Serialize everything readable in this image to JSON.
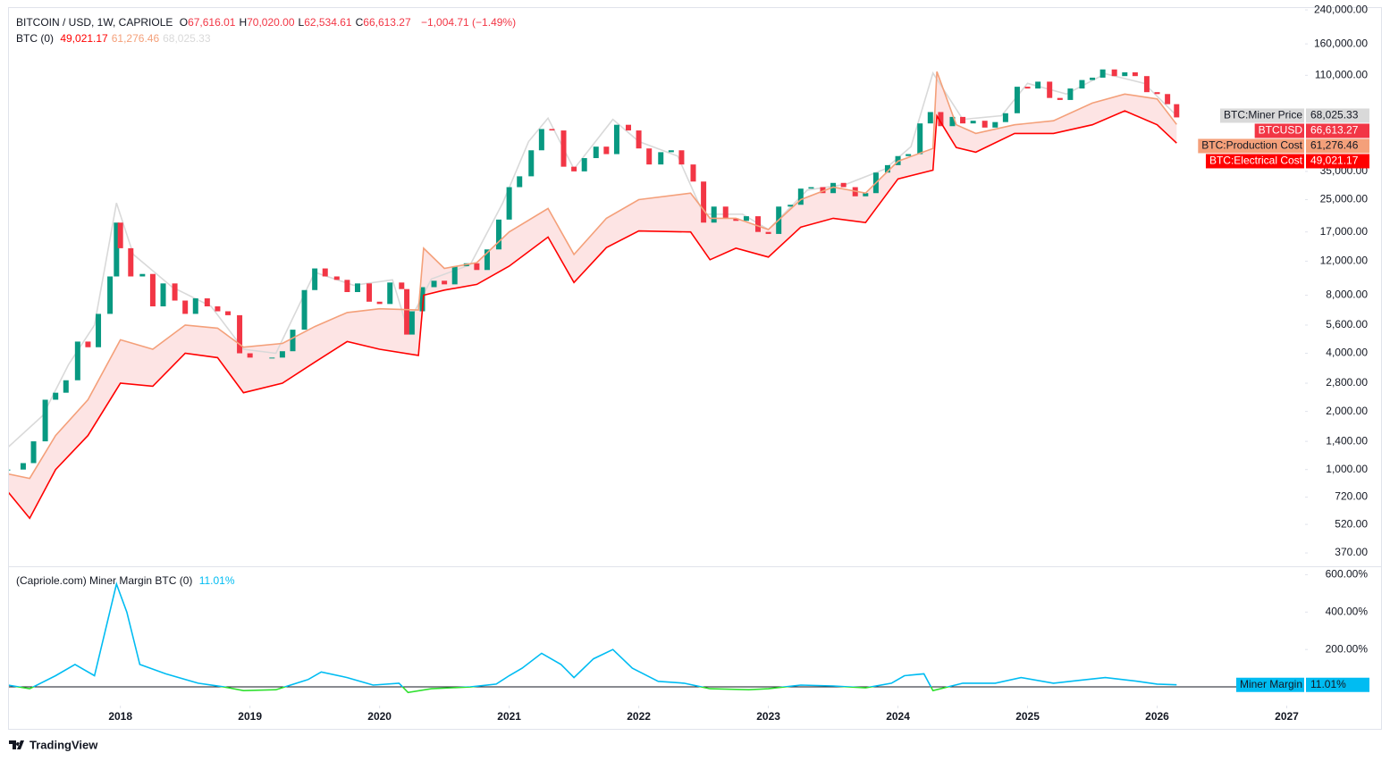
{
  "chart_data": [
    {
      "type": "line",
      "log_scale": true,
      "grid": false,
      "header": {
        "symbol": "BITCOIN / USD, 1W, CAPRIOLE",
        "ohlc": [
          {
            "key": "O",
            "label": "67,616.01"
          },
          {
            "key": "H",
            "label": "70,020.00"
          },
          {
            "key": "L",
            "label": "62,534.61"
          },
          {
            "key": "C",
            "label": "66,613.27"
          }
        ],
        "change": "−1,004.71 (−1.49%)"
      },
      "legend_title": "BTC (0)",
      "xlim": [
        2017.14,
        2027.1
      ],
      "ylim": [
        319,
        248000
      ],
      "yticks": [
        {
          "value": 370,
          "label": "370.00"
        },
        {
          "value": 520,
          "label": "520.00"
        },
        {
          "value": 720,
          "label": "720.00"
        },
        {
          "value": 1000,
          "label": "1,000.00"
        },
        {
          "value": 1400,
          "label": "1,400.00"
        },
        {
          "value": 2000,
          "label": "2,000.00"
        },
        {
          "value": 2800,
          "label": "2,800.00"
        },
        {
          "value": 4000,
          "label": "4,000.00"
        },
        {
          "value": 5600,
          "label": "5,600.00"
        },
        {
          "value": 8000,
          "label": "8,000.00"
        },
        {
          "value": 12000,
          "label": "12,000.00"
        },
        {
          "value": 17000,
          "label": "17,000.00"
        },
        {
          "value": 25000,
          "label": "25,000.00"
        },
        {
          "value": 35000,
          "label": "35,000.00"
        },
        {
          "value": 110000,
          "label": "110,000.00"
        },
        {
          "value": 160000,
          "label": "160,000.00"
        },
        {
          "value": 240000,
          "label": "240,000.00"
        }
      ],
      "series": [
        {
          "name": "BTC:Miner Price",
          "color": "#d9d9d9",
          "x": [
            2017.13,
            2017.4,
            2017.6,
            2017.8,
            2017.97,
            2018.1,
            2018.4,
            2018.7,
            2018.95,
            2019.2,
            2019.5,
            2019.8,
            2020.1,
            2020.21,
            2020.4,
            2020.7,
            2020.95,
            2021.15,
            2021.3,
            2021.5,
            2021.8,
            2022.0,
            2022.3,
            2022.5,
            2022.8,
            2023.0,
            2023.3,
            2023.6,
            2023.9,
            2024.1,
            2024.27,
            2024.5,
            2024.8,
            2025.0,
            2025.3,
            2025.6,
            2025.9,
            2026.15
          ],
          "values": [
            1300,
            1900,
            3500,
            5600,
            24000,
            13000,
            8800,
            7000,
            4200,
            4000,
            10500,
            9000,
            9600,
            5500,
            9700,
            11500,
            24000,
            50000,
            66000,
            36000,
            65000,
            50000,
            42000,
            21000,
            21000,
            17500,
            28000,
            30000,
            36000,
            47000,
            113000,
            65000,
            68000,
            100000,
            88000,
            112000,
            100000,
            68025.33
          ],
          "last": {
            "value": 68025.33,
            "label": "68,025.33"
          }
        },
        {
          "name": "BTCUSD",
          "style": "candles",
          "color": "#f23645",
          "up_color": "#089981",
          "x": [
            2017.13,
            2017.25,
            2017.33,
            2017.42,
            2017.5,
            2017.58,
            2017.67,
            2017.75,
            2017.83,
            2017.92,
            2017.97,
            2018.0,
            2018.08,
            2018.17,
            2018.25,
            2018.33,
            2018.42,
            2018.5,
            2018.58,
            2018.67,
            2018.75,
            2018.83,
            2018.92,
            2019.0,
            2019.17,
            2019.25,
            2019.33,
            2019.42,
            2019.5,
            2019.58,
            2019.67,
            2019.75,
            2019.83,
            2019.92,
            2020.0,
            2020.08,
            2020.17,
            2020.21,
            2020.25,
            2020.33,
            2020.42,
            2020.5,
            2020.58,
            2020.67,
            2020.75,
            2020.83,
            2020.92,
            2021.0,
            2021.08,
            2021.17,
            2021.25,
            2021.33,
            2021.42,
            2021.5,
            2021.58,
            2021.67,
            2021.75,
            2021.83,
            2021.92,
            2022.0,
            2022.08,
            2022.17,
            2022.25,
            2022.33,
            2022.42,
            2022.5,
            2022.58,
            2022.67,
            2022.75,
            2022.83,
            2022.92,
            2023.0,
            2023.08,
            2023.17,
            2023.25,
            2023.33,
            2023.42,
            2023.5,
            2023.58,
            2023.67,
            2023.75,
            2023.83,
            2023.92,
            2024.0,
            2024.08,
            2024.17,
            2024.25,
            2024.33,
            2024.42,
            2024.5,
            2024.58,
            2024.67,
            2024.75,
            2024.83,
            2024.92,
            2025.0,
            2025.08,
            2025.17,
            2025.25,
            2025.33,
            2025.42,
            2025.5,
            2025.58,
            2025.67,
            2025.75,
            2025.83,
            2025.92,
            2026.0,
            2026.08,
            2026.15
          ],
          "values": [
            1000,
            1080,
            1400,
            2300,
            2500,
            2900,
            4600,
            4300,
            6400,
            10000,
            19000,
            14000,
            10000,
            10300,
            7000,
            9200,
            7500,
            6400,
            7700,
            7000,
            6600,
            6300,
            4000,
            3800,
            3800,
            4100,
            5300,
            8500,
            11000,
            10000,
            9600,
            8300,
            9200,
            7400,
            7200,
            9300,
            8600,
            5000,
            6600,
            8800,
            9500,
            9100,
            11300,
            11700,
            10800,
            13800,
            19700,
            29000,
            33000,
            45000,
            58000,
            57000,
            37000,
            35000,
            41000,
            47000,
            43000,
            61000,
            57000,
            46000,
            38000,
            44000,
            45000,
            38000,
            31000,
            19000,
            23000,
            20000,
            19400,
            20500,
            17000,
            16600,
            23000,
            23500,
            28500,
            29000,
            27000,
            30500,
            29000,
            26000,
            27000,
            34500,
            37700,
            42000,
            43000,
            62000,
            71000,
            60000,
            67000,
            62000,
            64000,
            59000,
            63000,
            70000,
            96000,
            94000,
            102000,
            84000,
            82000,
            94000,
            104000,
            107000,
            118000,
            109000,
            114000,
            109000,
            90000,
            88000,
            78000,
            66613.27
          ],
          "last": {
            "value": 66613.27,
            "label": "66,613.27"
          }
        },
        {
          "name": "BTC:Production Cost",
          "color": "#f4a07a",
          "fill": "#fde4e4",
          "x": [
            2017.13,
            2017.3,
            2017.5,
            2017.75,
            2018.0,
            2018.25,
            2018.5,
            2018.75,
            2018.95,
            2019.25,
            2019.5,
            2019.75,
            2020.0,
            2020.3,
            2020.34,
            2020.5,
            2020.75,
            2021.0,
            2021.3,
            2021.5,
            2021.75,
            2022.0,
            2022.4,
            2022.55,
            2022.75,
            2023.0,
            2023.25,
            2023.5,
            2023.75,
            2024.0,
            2024.27,
            2024.3,
            2024.45,
            2024.6,
            2024.9,
            2025.2,
            2025.5,
            2025.75,
            2026.0,
            2026.15
          ],
          "values": [
            950,
            900,
            1500,
            2300,
            4700,
            4200,
            5600,
            5400,
            4300,
            4500,
            5500,
            6500,
            6800,
            6700,
            14000,
            11000,
            11800,
            17000,
            22500,
            13000,
            20000,
            25000,
            27000,
            20000,
            20000,
            17500,
            25000,
            29000,
            27000,
            39500,
            46000,
            115000,
            61000,
            55000,
            61000,
            64000,
            79000,
            88000,
            83000,
            61276.46
          ],
          "last": {
            "value": 61276.46,
            "label": "61,276.46"
          }
        },
        {
          "name": "BTC:Electrical Cost",
          "color": "#ff0000",
          "x": [
            2017.13,
            2017.3,
            2017.5,
            2017.75,
            2018.0,
            2018.25,
            2018.5,
            2018.75,
            2018.95,
            2019.25,
            2019.5,
            2019.75,
            2020.0,
            2020.3,
            2020.34,
            2020.5,
            2020.75,
            2021.0,
            2021.3,
            2021.5,
            2021.75,
            2022.0,
            2022.4,
            2022.55,
            2022.75,
            2023.0,
            2023.25,
            2023.5,
            2023.75,
            2024.0,
            2024.27,
            2024.3,
            2024.45,
            2024.6,
            2024.9,
            2025.2,
            2025.5,
            2025.75,
            2026.0,
            2026.15
          ],
          "values": [
            770,
            560,
            1000,
            1500,
            2800,
            2700,
            4000,
            3800,
            2500,
            2800,
            3600,
            4600,
            4200,
            3900,
            8000,
            8500,
            9100,
            11300,
            16000,
            9300,
            14100,
            17200,
            17000,
            12200,
            14000,
            12600,
            18000,
            20000,
            19000,
            32000,
            35500,
            67700,
            46500,
            44000,
            55000,
            55000,
            61000,
            72000,
            61000,
            49021.17
          ],
          "last": {
            "value": 49021.17,
            "label": "49,021.17"
          }
        }
      ]
    },
    {
      "type": "line",
      "grid": false,
      "title": "(Capriole.com) Miner Margin BTC (0)",
      "xlim": [
        2017.14,
        2027.1
      ],
      "ylim": [
        -100,
        640
      ],
      "xticks": [
        2018,
        2019,
        2020,
        2021,
        2022,
        2023,
        2024,
        2025,
        2026,
        2027
      ],
      "yticks": [
        {
          "value": 200,
          "label": "200.00%"
        },
        {
          "value": 400,
          "label": "400.00%"
        },
        {
          "value": 600,
          "label": "600.00%"
        }
      ],
      "series": [
        {
          "name": "Miner Margin",
          "color": "#00bcf2",
          "negative_color": "#2ee02e",
          "x": [
            2017.13,
            2017.3,
            2017.5,
            2017.65,
            2017.8,
            2017.97,
            2018.05,
            2018.15,
            2018.35,
            2018.6,
            2018.8,
            2018.95,
            2019.2,
            2019.45,
            2019.55,
            2019.75,
            2019.95,
            2020.15,
            2020.22,
            2020.4,
            2020.7,
            2020.9,
            2021.0,
            2021.1,
            2021.25,
            2021.4,
            2021.5,
            2021.65,
            2021.8,
            2021.95,
            2022.15,
            2022.35,
            2022.55,
            2022.85,
            2023.0,
            2023.25,
            2023.5,
            2023.75,
            2023.95,
            2024.05,
            2024.2,
            2024.27,
            2024.5,
            2024.75,
            2024.95,
            2025.2,
            2025.4,
            2025.6,
            2025.85,
            2026.0,
            2026.15
          ],
          "values": [
            10,
            -10,
            60,
            120,
            60,
            550,
            400,
            120,
            70,
            20,
            0,
            -20,
            -15,
            40,
            80,
            50,
            10,
            20,
            -30,
            -10,
            0,
            15,
            60,
            100,
            180,
            120,
            50,
            150,
            200,
            100,
            30,
            20,
            -10,
            -15,
            -10,
            10,
            5,
            -5,
            20,
            60,
            70,
            -20,
            20,
            20,
            50,
            20,
            35,
            50,
            30,
            15,
            11.01
          ],
          "last": {
            "value": 11.01,
            "label": "11.01%"
          }
        }
      ]
    }
  ]
}
